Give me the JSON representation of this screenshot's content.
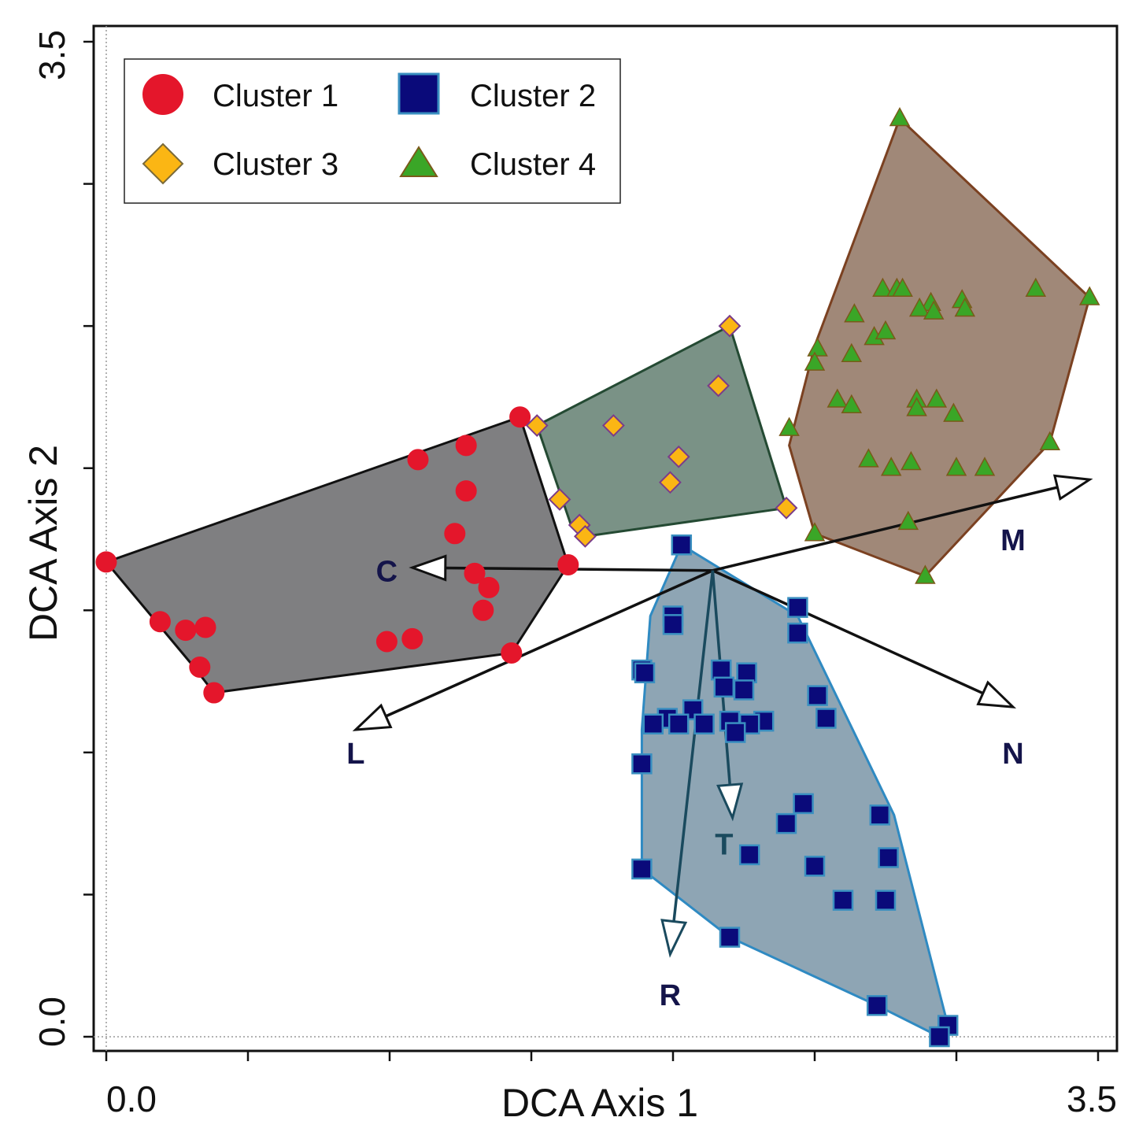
{
  "chart_data": {
    "type": "scatter",
    "title": "",
    "xlabel": "DCA Axis 1",
    "ylabel": "DCA Axis 2",
    "xlim": [
      0,
      3.5
    ],
    "ylim": [
      0,
      3.5
    ],
    "x_tick_labels": [
      "0.0",
      "3.5"
    ],
    "y_tick_labels": [
      "0.0",
      "3.5"
    ],
    "legend_position": "top-left",
    "series": [
      {
        "name": "Cluster 1",
        "marker": "circle",
        "color": "#e4162b",
        "edge": "#e4162b",
        "hull_fill": "#7f7f81",
        "hull_stroke": "#111111",
        "hull": [
          [
            1.46,
            2.18
          ],
          [
            1.63,
            1.66
          ],
          [
            1.43,
            1.35
          ],
          [
            0.38,
            1.21
          ],
          [
            0.31,
            1.3
          ],
          [
            0,
            1.67
          ],
          [
            1.46,
            2.18
          ]
        ],
        "points": [
          [
            1.46,
            2.18
          ],
          [
            1.27,
            2.08
          ],
          [
            1.1,
            2.03
          ],
          [
            1.27,
            1.92
          ],
          [
            1.23,
            1.77
          ],
          [
            1.63,
            1.66
          ],
          [
            0,
            1.67
          ],
          [
            1.3,
            1.63
          ],
          [
            1.35,
            1.58
          ],
          [
            1.33,
            1.5
          ],
          [
            0.19,
            1.46
          ],
          [
            0.28,
            1.43
          ],
          [
            0.35,
            1.44
          ],
          [
            1.08,
            1.4
          ],
          [
            0.99,
            1.39
          ],
          [
            1.43,
            1.35
          ],
          [
            0.33,
            1.3
          ],
          [
            0.38,
            1.21
          ]
        ]
      },
      {
        "name": "Cluster 2",
        "marker": "square",
        "color": "#0a0a7a",
        "edge": "#3a8fc0",
        "hull_fill": "#8ea5b4",
        "hull_stroke": "#2f8ac2",
        "hull": [
          [
            2.03,
            1.73
          ],
          [
            2.44,
            1.48
          ],
          [
            2.78,
            0.78
          ],
          [
            2.97,
            0.04
          ],
          [
            2.94,
            0
          ],
          [
            2.72,
            0.11
          ],
          [
            2.2,
            0.35
          ],
          [
            1.89,
            0.59
          ],
          [
            1.89,
            1.08
          ],
          [
            1.92,
            1.48
          ],
          [
            2.03,
            1.73
          ]
        ],
        "points": [
          [
            2.03,
            1.73
          ],
          [
            2.44,
            1.51
          ],
          [
            2.44,
            1.42
          ],
          [
            2.0,
            1.48
          ],
          [
            2.0,
            1.45
          ],
          [
            1.89,
            1.29
          ],
          [
            1.9,
            1.28
          ],
          [
            2.17,
            1.29
          ],
          [
            2.26,
            1.28
          ],
          [
            2.18,
            1.23
          ],
          [
            2.25,
            1.22
          ],
          [
            2.51,
            1.2
          ],
          [
            2.07,
            1.15
          ],
          [
            1.98,
            1.12
          ],
          [
            2.2,
            1.11
          ],
          [
            2.32,
            1.11
          ],
          [
            1.93,
            1.1
          ],
          [
            2.02,
            1.1
          ],
          [
            2.11,
            1.1
          ],
          [
            2.27,
            1.1
          ],
          [
            2.22,
            1.07
          ],
          [
            2.54,
            1.12
          ],
          [
            1.89,
            0.96
          ],
          [
            2.46,
            0.82
          ],
          [
            2.73,
            0.78
          ],
          [
            2.4,
            0.75
          ],
          [
            2.27,
            0.64
          ],
          [
            2.76,
            0.63
          ],
          [
            2.5,
            0.6
          ],
          [
            1.89,
            0.59
          ],
          [
            2.6,
            0.48
          ],
          [
            2.75,
            0.48
          ],
          [
            2.2,
            0.35
          ],
          [
            2.72,
            0.11
          ],
          [
            2.97,
            0.04
          ],
          [
            2.94,
            0
          ]
        ]
      },
      {
        "name": "Cluster 3",
        "marker": "diamond",
        "color": "#fbb614",
        "edge": "#7a3c8a",
        "hull_fill": "#7a9286",
        "hull_stroke": "#244a33",
        "hull": [
          [
            2.2,
            2.5
          ],
          [
            2.4,
            1.86
          ],
          [
            1.69,
            1.76
          ],
          [
            1.64,
            1.8
          ],
          [
            1.52,
            2.15
          ],
          [
            2.2,
            2.5
          ]
        ],
        "points": [
          [
            2.2,
            2.5
          ],
          [
            2.16,
            2.29
          ],
          [
            1.79,
            2.15
          ],
          [
            1.52,
            2.15
          ],
          [
            2.02,
            2.04
          ],
          [
            1.99,
            1.95
          ],
          [
            1.6,
            1.89
          ],
          [
            2.4,
            1.86
          ],
          [
            1.67,
            1.8
          ],
          [
            1.69,
            1.76
          ]
        ]
      },
      {
        "name": "Cluster 4",
        "marker": "triangle",
        "color": "#3aa627",
        "edge": "#7a5a1a",
        "hull_fill": "#a08878",
        "hull_stroke": "#7b4121",
        "hull": [
          [
            2.8,
            3.23
          ],
          [
            3.47,
            2.6
          ],
          [
            3.33,
            2.09
          ],
          [
            2.89,
            1.62
          ],
          [
            2.5,
            1.77
          ],
          [
            2.41,
            2.08
          ],
          [
            2.5,
            2.43
          ],
          [
            2.8,
            3.23
          ]
        ],
        "points": [
          [
            2.8,
            3.23
          ],
          [
            3.28,
            2.63
          ],
          [
            3.47,
            2.6
          ],
          [
            2.74,
            2.63
          ],
          [
            2.79,
            2.63
          ],
          [
            2.81,
            2.63
          ],
          [
            2.91,
            2.58
          ],
          [
            3.02,
            2.59
          ],
          [
            3.03,
            2.56
          ],
          [
            2.87,
            2.56
          ],
          [
            2.92,
            2.55
          ],
          [
            2.64,
            2.54
          ],
          [
            2.71,
            2.46
          ],
          [
            2.75,
            2.48
          ],
          [
            2.51,
            2.42
          ],
          [
            2.63,
            2.4
          ],
          [
            2.5,
            2.37
          ],
          [
            2.41,
            2.14
          ],
          [
            2.58,
            2.24
          ],
          [
            2.63,
            2.22
          ],
          [
            2.86,
            2.24
          ],
          [
            2.93,
            2.24
          ],
          [
            2.86,
            2.21
          ],
          [
            2.99,
            2.19
          ],
          [
            3.33,
            2.09
          ],
          [
            2.69,
            2.03
          ],
          [
            2.84,
            2.02
          ],
          [
            2.77,
            2.0
          ],
          [
            3.0,
            2.0
          ],
          [
            3.1,
            2.0
          ],
          [
            2.83,
            1.81
          ],
          [
            2.5,
            1.77
          ],
          [
            2.89,
            1.62
          ]
        ]
      }
    ],
    "vectors": {
      "origin": [
        2.14,
        1.64
      ],
      "color": "#111111",
      "items": [
        {
          "name": "M",
          "to": [
            3.47,
            1.96
          ],
          "label_at": [
            3.2,
            1.75
          ],
          "color": "#111111",
          "label_color": "#14144a"
        },
        {
          "name": "C",
          "to": [
            1.08,
            1.65
          ],
          "label_at": [
            0.99,
            1.64
          ],
          "color": "#111111",
          "label_color": "#14144a"
        },
        {
          "name": "L",
          "to": [
            0.88,
            1.08
          ],
          "label_at": [
            0.88,
            1.0
          ],
          "color": "#111111",
          "label_color": "#14144a"
        },
        {
          "name": "N",
          "to": [
            3.2,
            1.16
          ],
          "label_at": [
            3.2,
            1.0
          ],
          "color": "#111111",
          "label_color": "#14144a"
        },
        {
          "name": "T",
          "to": [
            2.21,
            0.77
          ],
          "label_at": [
            2.18,
            0.68
          ],
          "color": "#1a4a5e",
          "label_color": "#1a4a5e"
        },
        {
          "name": "R",
          "to": [
            1.99,
            0.29
          ],
          "label_at": [
            1.99,
            0.15
          ],
          "color": "#1a4a5e",
          "label_color": "#14144a"
        }
      ]
    }
  }
}
